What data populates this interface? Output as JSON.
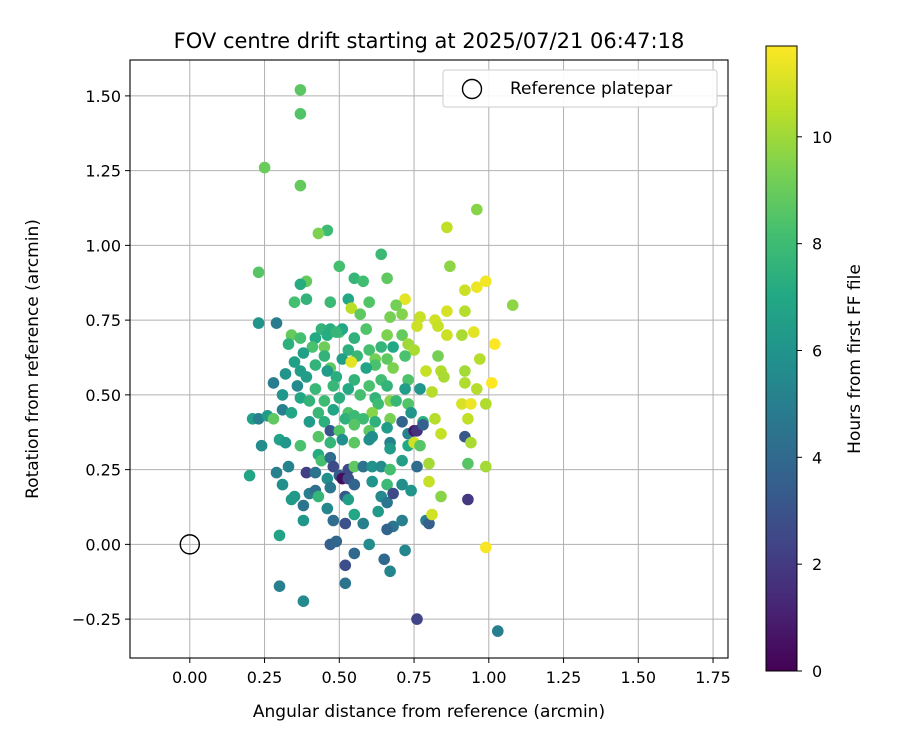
{
  "chart_data": {
    "type": "scatter",
    "title": "FOV centre drift starting at 2025/07/21 06:47:18",
    "xlabel": "Angular distance from reference (arcmin)",
    "ylabel": "Rotation from reference (arcmin)",
    "xlim": [
      -0.2,
      1.8
    ],
    "ylim": [
      -0.38,
      1.62
    ],
    "xticks": [
      0.0,
      0.25,
      0.5,
      0.75,
      1.0,
      1.25,
      1.5,
      1.75
    ],
    "xtick_labels": [
      "0.00",
      "0.25",
      "0.50",
      "0.75",
      "1.00",
      "1.25",
      "1.50",
      "1.75"
    ],
    "yticks": [
      -0.25,
      0.0,
      0.25,
      0.5,
      0.75,
      1.0,
      1.25,
      1.5
    ],
    "ytick_labels": [
      "−0.25",
      "0.00",
      "0.25",
      "0.50",
      "0.75",
      "1.00",
      "1.25",
      "1.50"
    ],
    "grid": true,
    "legend": {
      "placement": "top-right",
      "entries": [
        "Reference platepar"
      ]
    },
    "reference_point": {
      "x": 0.0,
      "y": 0.0
    },
    "colorbar": {
      "label": "Hours from first FF file",
      "range": [
        0,
        11.7
      ],
      "ticks": [
        0,
        2,
        4,
        6,
        8,
        10
      ],
      "tick_labels": [
        "0",
        "2",
        "4",
        "6",
        "8",
        "10"
      ],
      "colormap": "viridis"
    },
    "points": [
      [
        0.37,
        1.52,
        8.7
      ],
      [
        0.37,
        1.44,
        8.5
      ],
      [
        0.25,
        1.26,
        9.0
      ],
      [
        0.37,
        1.2,
        8.9
      ],
      [
        0.96,
        1.12,
        9.6
      ],
      [
        0.86,
        1.06,
        10.6
      ],
      [
        0.46,
        1.05,
        8.0
      ],
      [
        0.43,
        1.04,
        9.4
      ],
      [
        0.64,
        0.97,
        7.9
      ],
      [
        0.87,
        0.93,
        9.7
      ],
      [
        0.23,
        0.91,
        8.6
      ],
      [
        0.5,
        0.93,
        8.2
      ],
      [
        0.55,
        0.89,
        7.7
      ],
      [
        0.39,
        0.88,
        8.9
      ],
      [
        0.37,
        0.87,
        7.2
      ],
      [
        0.58,
        0.88,
        8.1
      ],
      [
        0.66,
        0.89,
        8.8
      ],
      [
        0.99,
        0.88,
        11.5
      ],
      [
        0.96,
        0.86,
        11.4
      ],
      [
        0.92,
        0.85,
        10.8
      ],
      [
        0.53,
        0.82,
        7.0
      ],
      [
        0.39,
        0.82,
        7.6
      ],
      [
        0.35,
        0.81,
        8.2
      ],
      [
        0.47,
        0.81,
        7.9
      ],
      [
        0.6,
        0.81,
        8.5
      ],
      [
        0.72,
        0.82,
        11.2
      ],
      [
        0.69,
        0.8,
        9.2
      ],
      [
        0.54,
        0.79,
        10.5
      ],
      [
        0.71,
        0.77,
        9.5
      ],
      [
        0.57,
        0.77,
        8.8
      ],
      [
        0.67,
        0.76,
        9.3
      ],
      [
        0.77,
        0.76,
        10.7
      ],
      [
        0.86,
        0.78,
        11.0
      ],
      [
        0.92,
        0.78,
        10.4
      ],
      [
        1.08,
        0.8,
        9.7
      ],
      [
        0.23,
        0.74,
        6.0
      ],
      [
        0.29,
        0.74,
        4.8
      ],
      [
        0.44,
        0.72,
        7.6
      ],
      [
        0.47,
        0.72,
        7.3
      ],
      [
        0.5,
        0.71,
        8.3
      ],
      [
        0.51,
        0.72,
        7.0
      ],
      [
        0.59,
        0.72,
        8.5
      ],
      [
        0.76,
        0.73,
        10.8
      ],
      [
        0.82,
        0.75,
        10.9
      ],
      [
        0.83,
        0.73,
        10.7
      ],
      [
        0.95,
        0.71,
        11.2
      ],
      [
        0.34,
        0.7,
        8.9
      ],
      [
        0.37,
        0.69,
        8.2
      ],
      [
        0.42,
        0.69,
        7.1
      ],
      [
        0.46,
        0.7,
        7.2
      ],
      [
        0.49,
        0.71,
        7.7
      ],
      [
        0.55,
        0.69,
        7.5
      ],
      [
        0.66,
        0.7,
        9.4
      ],
      [
        0.71,
        0.7,
        8.9
      ],
      [
        0.86,
        0.7,
        10.8
      ],
      [
        0.91,
        0.7,
        10.2
      ],
      [
        0.33,
        0.67,
        7.4
      ],
      [
        0.41,
        0.66,
        8.3
      ],
      [
        0.45,
        0.66,
        9.1
      ],
      [
        0.53,
        0.65,
        7.4
      ],
      [
        0.6,
        0.65,
        8.2
      ],
      [
        0.64,
        0.66,
        7.7
      ],
      [
        0.68,
        0.66,
        7.0
      ],
      [
        0.73,
        0.67,
        10.0
      ],
      [
        0.75,
        0.65,
        10.2
      ],
      [
        1.02,
        0.67,
        11.7
      ],
      [
        0.38,
        0.64,
        6.6
      ],
      [
        0.45,
        0.63,
        7.6
      ],
      [
        0.51,
        0.62,
        6.6
      ],
      [
        0.56,
        0.63,
        7.8
      ],
      [
        0.62,
        0.62,
        9.2
      ],
      [
        0.66,
        0.62,
        8.8
      ],
      [
        0.72,
        0.63,
        8.3
      ],
      [
        0.83,
        0.63,
        9.2
      ],
      [
        0.97,
        0.62,
        10.4
      ],
      [
        0.35,
        0.61,
        6.6
      ],
      [
        0.42,
        0.6,
        7.6
      ],
      [
        0.47,
        0.59,
        8.8
      ],
      [
        0.54,
        0.61,
        11.2
      ],
      [
        0.62,
        0.6,
        8.3
      ],
      [
        0.68,
        0.59,
        9.4
      ],
      [
        0.59,
        0.59,
        6.8
      ],
      [
        0.37,
        0.58,
        6.5
      ],
      [
        0.46,
        0.58,
        6.4
      ],
      [
        0.32,
        0.57,
        6.0
      ],
      [
        0.39,
        0.56,
        6.5
      ],
      [
        0.49,
        0.56,
        7.3
      ],
      [
        0.55,
        0.55,
        7.6
      ],
      [
        0.64,
        0.55,
        8.1
      ],
      [
        0.73,
        0.55,
        8.4
      ],
      [
        0.79,
        0.58,
        10.7
      ],
      [
        0.84,
        0.58,
        10.3
      ],
      [
        0.92,
        0.58,
        10.1
      ],
      [
        0.85,
        0.56,
        10.2
      ],
      [
        0.28,
        0.54,
        4.9
      ],
      [
        0.36,
        0.53,
        5.5
      ],
      [
        0.42,
        0.52,
        7.8
      ],
      [
        0.48,
        0.53,
        7.8
      ],
      [
        0.53,
        0.52,
        7.1
      ],
      [
        0.6,
        0.53,
        8.3
      ],
      [
        0.66,
        0.53,
        7.6
      ],
      [
        0.72,
        0.52,
        6.5
      ],
      [
        0.77,
        0.52,
        6.1
      ],
      [
        0.81,
        0.51,
        10.4
      ],
      [
        0.92,
        0.54,
        10.3
      ],
      [
        0.96,
        0.52,
        10.4
      ],
      [
        1.01,
        0.54,
        11.7
      ],
      [
        0.31,
        0.5,
        6.1
      ],
      [
        0.37,
        0.49,
        6.9
      ],
      [
        0.4,
        0.48,
        7.6
      ],
      [
        0.45,
        0.48,
        8.0
      ],
      [
        0.5,
        0.49,
        7.3
      ],
      [
        0.57,
        0.5,
        8.2
      ],
      [
        0.62,
        0.49,
        7.6
      ],
      [
        0.67,
        0.48,
        9.6
      ],
      [
        0.69,
        0.48,
        7.8
      ],
      [
        0.63,
        0.47,
        8.0
      ],
      [
        0.73,
        0.47,
        8.5
      ],
      [
        0.91,
        0.47,
        11.0
      ],
      [
        0.94,
        0.47,
        11.4
      ],
      [
        0.99,
        0.47,
        10.3
      ],
      [
        0.31,
        0.45,
        5.0
      ],
      [
        0.34,
        0.44,
        6.9
      ],
      [
        0.43,
        0.44,
        7.8
      ],
      [
        0.48,
        0.45,
        6.8
      ],
      [
        0.53,
        0.44,
        8.4
      ],
      [
        0.61,
        0.44,
        9.6
      ],
      [
        0.74,
        0.44,
        6.1
      ],
      [
        0.21,
        0.42,
        6.6
      ],
      [
        0.23,
        0.42,
        5.0
      ],
      [
        0.26,
        0.43,
        6.4
      ],
      [
        0.28,
        0.42,
        8.8
      ],
      [
        0.4,
        0.41,
        6.4
      ],
      [
        0.45,
        0.41,
        7.4
      ],
      [
        0.52,
        0.42,
        7.5
      ],
      [
        0.55,
        0.43,
        7.9
      ],
      [
        0.58,
        0.42,
        8.0
      ],
      [
        0.62,
        0.41,
        7.5
      ],
      [
        0.67,
        0.42,
        9.3
      ],
      [
        0.71,
        0.41,
        3.8
      ],
      [
        0.78,
        0.41,
        7.4
      ],
      [
        0.82,
        0.42,
        10.4
      ],
      [
        0.93,
        0.42,
        10.6
      ],
      [
        0.47,
        0.38,
        3.1
      ],
      [
        0.5,
        0.38,
        8.5
      ],
      [
        0.55,
        0.4,
        8.6
      ],
      [
        0.6,
        0.38,
        8.8
      ],
      [
        0.66,
        0.39,
        6.4
      ],
      [
        0.73,
        0.37,
        5.2
      ],
      [
        0.75,
        0.38,
        0.7
      ],
      [
        0.76,
        0.38,
        1.7
      ],
      [
        0.78,
        0.4,
        3.6
      ],
      [
        0.84,
        0.37,
        10.7
      ],
      [
        0.3,
        0.35,
        6.7
      ],
      [
        0.37,
        0.33,
        8.3
      ],
      [
        0.43,
        0.36,
        8.6
      ],
      [
        0.47,
        0.34,
        7.7
      ],
      [
        0.51,
        0.35,
        5.8
      ],
      [
        0.55,
        0.34,
        8.7
      ],
      [
        0.6,
        0.35,
        5.8
      ],
      [
        0.61,
        0.36,
        5.7
      ],
      [
        0.67,
        0.34,
        5.2
      ],
      [
        0.67,
        0.32,
        6.4
      ],
      [
        0.73,
        0.33,
        7.0
      ],
      [
        0.75,
        0.34,
        10.9
      ],
      [
        0.77,
        0.33,
        8.6
      ],
      [
        0.92,
        0.36,
        3.2
      ],
      [
        0.94,
        0.34,
        10.2
      ],
      [
        0.24,
        0.33,
        5.6
      ],
      [
        0.32,
        0.34,
        6.1
      ],
      [
        0.43,
        0.3,
        7.2
      ],
      [
        0.44,
        0.28,
        8.2
      ],
      [
        0.47,
        0.29,
        4.1
      ],
      [
        0.48,
        0.26,
        2.7
      ],
      [
        0.53,
        0.25,
        2.5
      ],
      [
        0.55,
        0.26,
        8.8
      ],
      [
        0.58,
        0.26,
        4.5
      ],
      [
        0.61,
        0.26,
        5.9
      ],
      [
        0.64,
        0.26,
        5.6
      ],
      [
        0.67,
        0.25,
        8.2
      ],
      [
        0.71,
        0.28,
        6.5
      ],
      [
        0.76,
        0.26,
        4.1
      ],
      [
        0.8,
        0.27,
        10.1
      ],
      [
        0.93,
        0.27,
        8.6
      ],
      [
        0.99,
        0.26,
        10.1
      ],
      [
        0.2,
        0.23,
        6.8
      ],
      [
        0.29,
        0.24,
        5.0
      ],
      [
        0.33,
        0.26,
        5.2
      ],
      [
        0.39,
        0.24,
        2.2
      ],
      [
        0.42,
        0.24,
        4.5
      ],
      [
        0.46,
        0.22,
        5.8
      ],
      [
        0.5,
        0.23,
        3.4
      ],
      [
        0.51,
        0.22,
        0.4
      ],
      [
        0.53,
        0.22,
        2.8
      ],
      [
        0.55,
        0.2,
        3.8
      ],
      [
        0.61,
        0.21,
        6.0
      ],
      [
        0.66,
        0.2,
        7.9
      ],
      [
        0.71,
        0.2,
        5.7
      ],
      [
        0.8,
        0.21,
        10.7
      ],
      [
        0.31,
        0.2,
        5.8
      ],
      [
        0.34,
        0.15,
        6.3
      ],
      [
        0.35,
        0.16,
        6.3
      ],
      [
        0.4,
        0.17,
        5.0
      ],
      [
        0.42,
        0.18,
        4.3
      ],
      [
        0.43,
        0.16,
        7.7
      ],
      [
        0.47,
        0.19,
        4.7
      ],
      [
        0.52,
        0.16,
        3.2
      ],
      [
        0.53,
        0.15,
        6.6
      ],
      [
        0.64,
        0.16,
        5.5
      ],
      [
        0.66,
        0.14,
        4.6
      ],
      [
        0.68,
        0.17,
        2.6
      ],
      [
        0.74,
        0.18,
        6.0
      ],
      [
        0.84,
        0.16,
        9.6
      ],
      [
        0.93,
        0.15,
        1.9
      ],
      [
        0.38,
        0.13,
        4.5
      ],
      [
        0.46,
        0.12,
        5.4
      ],
      [
        0.55,
        0.1,
        6.9
      ],
      [
        0.63,
        0.11,
        6.3
      ],
      [
        0.68,
        0.06,
        4.6
      ],
      [
        0.71,
        0.08,
        5.0
      ],
      [
        0.79,
        0.08,
        4.9
      ],
      [
        0.8,
        0.07,
        3.5
      ],
      [
        0.81,
        0.1,
        10.9
      ],
      [
        0.3,
        0.03,
        6.7
      ],
      [
        0.38,
        0.08,
        6.1
      ],
      [
        0.48,
        0.08,
        4.2
      ],
      [
        0.52,
        0.07,
        2.9
      ],
      [
        0.58,
        0.07,
        5.1
      ],
      [
        0.66,
        0.05,
        3.8
      ],
      [
        0.47,
        0.0,
        3.6
      ],
      [
        0.49,
        0.01,
        3.9
      ],
      [
        0.55,
        -0.03,
        4.0
      ],
      [
        0.6,
        0.0,
        5.6
      ],
      [
        0.65,
        -0.05,
        4.0
      ],
      [
        0.72,
        -0.02,
        5.4
      ],
      [
        0.67,
        -0.09,
        5.3
      ],
      [
        0.52,
        -0.07,
        2.8
      ],
      [
        0.52,
        -0.13,
        4.5
      ],
      [
        0.99,
        -0.01,
        11.6
      ],
      [
        0.3,
        -0.14,
        5.0
      ],
      [
        0.38,
        -0.19,
        5.5
      ],
      [
        0.76,
        -0.25,
        2.4
      ],
      [
        1.03,
        -0.29,
        4.9
      ]
    ]
  }
}
